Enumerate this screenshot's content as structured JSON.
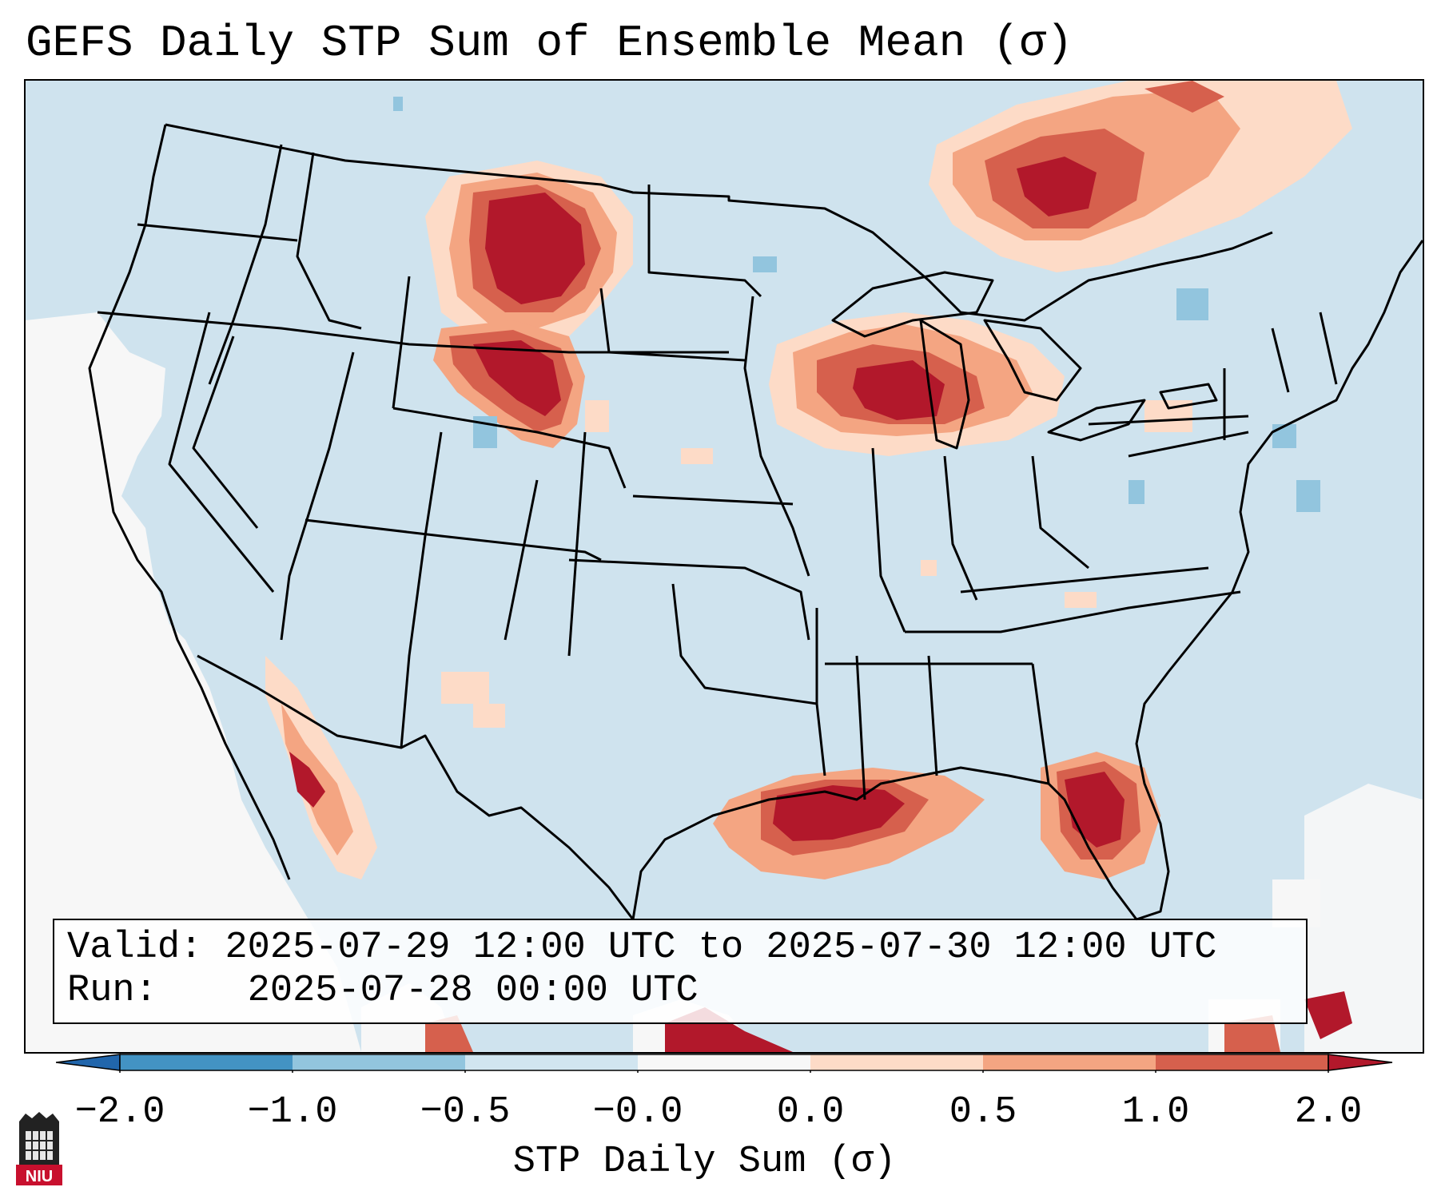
{
  "title": "GEFS Daily STP Sum of Ensemble Mean (σ)",
  "annotation": {
    "valid_label": "Valid:",
    "valid_value": "2025-07-29 12:00 UTC to 2025-07-30 12:00 UTC",
    "run_label": "Run:",
    "run_value": "2025-07-28 00:00 UTC"
  },
  "colorbar": {
    "label": "STP Daily Sum (σ)",
    "ticks": [
      "−2.0",
      "−1.0",
      "−0.5",
      "−0.0",
      "0.0",
      "0.5",
      "1.0",
      "2.0"
    ],
    "colors": {
      "under": "#2166ac",
      "bins": [
        "#4393c3",
        "#92c5de",
        "#d1e5f0",
        "#f7f7f7",
        "#fddbc7",
        "#f4a582",
        "#d6604d"
      ],
      "over": "#b2182b"
    }
  },
  "map": {
    "background_color": "#cfe3ee",
    "region": "CONUS",
    "features": [
      "state-borders",
      "country-borders",
      "coastlines",
      "great-lakes"
    ]
  },
  "stp_regions": [
    {
      "name": "northern-plains-montana-dakotas",
      "max_sigma": 2.0
    },
    {
      "name": "wyoming-south-dakota",
      "max_sigma": 2.0
    },
    {
      "name": "upper-midwest-wisconsin-michigan",
      "max_sigma": 2.0
    },
    {
      "name": "southern-ontario-quebec",
      "max_sigma": 2.0
    },
    {
      "name": "texas-louisiana-gulf-coast",
      "max_sigma": 2.0
    },
    {
      "name": "north-florida",
      "max_sigma": 2.0
    },
    {
      "name": "sonora-gulf-of-california",
      "max_sigma": 2.0
    }
  ],
  "logo": {
    "text": "NIU"
  }
}
